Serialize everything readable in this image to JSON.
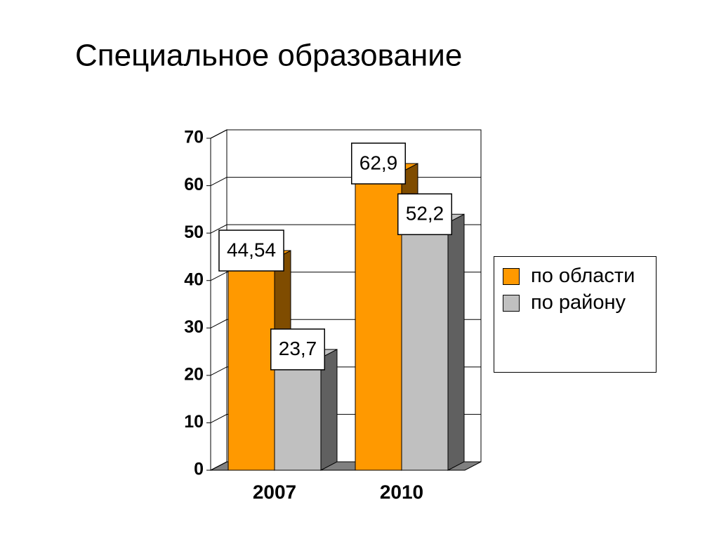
{
  "chart_data": {
    "type": "bar",
    "title": "Специальное образование",
    "categories": [
      "2007",
      "2010"
    ],
    "series": [
      {
        "name": "по области",
        "color": "#ff9900",
        "values": [
          44.54,
          62.9
        ],
        "value_labels": [
          "44,54",
          "62,9"
        ]
      },
      {
        "name": "по району",
        "color": "#c0c0c0",
        "values": [
          23.7,
          52.2
        ],
        "value_labels": [
          "23,7",
          "52,2"
        ]
      }
    ],
    "ylim": [
      0,
      70
    ],
    "yticks": [
      0,
      10,
      20,
      30,
      40,
      50,
      60,
      70
    ],
    "grid": true
  }
}
